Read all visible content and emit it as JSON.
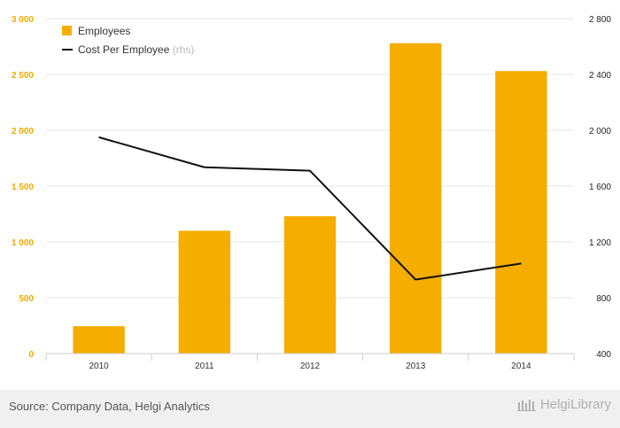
{
  "chart_data": {
    "type": "bar",
    "categories": [
      "2010",
      "2011",
      "2012",
      "2013",
      "2014"
    ],
    "series": [
      {
        "name": "Employees",
        "type": "bar",
        "axis": "left",
        "color": "#f5ad00",
        "values": [
          245,
          1100,
          1230,
          2780,
          2530
        ]
      },
      {
        "name": "Cost Per Employee",
        "type": "line",
        "axis": "right",
        "color": "#111111",
        "values": [
          1950,
          1735,
          1710,
          930,
          1045
        ]
      }
    ],
    "y_left": {
      "ticks": [
        "0",
        "500",
        "1 000",
        "1 500",
        "2 000",
        "2 500",
        "3 000"
      ],
      "range": [
        0,
        3000
      ]
    },
    "y_right": {
      "ticks": [
        "400",
        "800",
        "1 200",
        "1 600",
        "2 000",
        "2 400",
        "2 800"
      ],
      "range": [
        400,
        2800
      ]
    },
    "legend": {
      "position": "top-left",
      "bar_label": "Employees",
      "line_label": "Cost Per Employee",
      "line_suffix": "(rhs)"
    },
    "grid": true
  },
  "footer": {
    "source": "Source: Company Data, Helgi Analytics",
    "brand": "HelgiLibrary"
  }
}
